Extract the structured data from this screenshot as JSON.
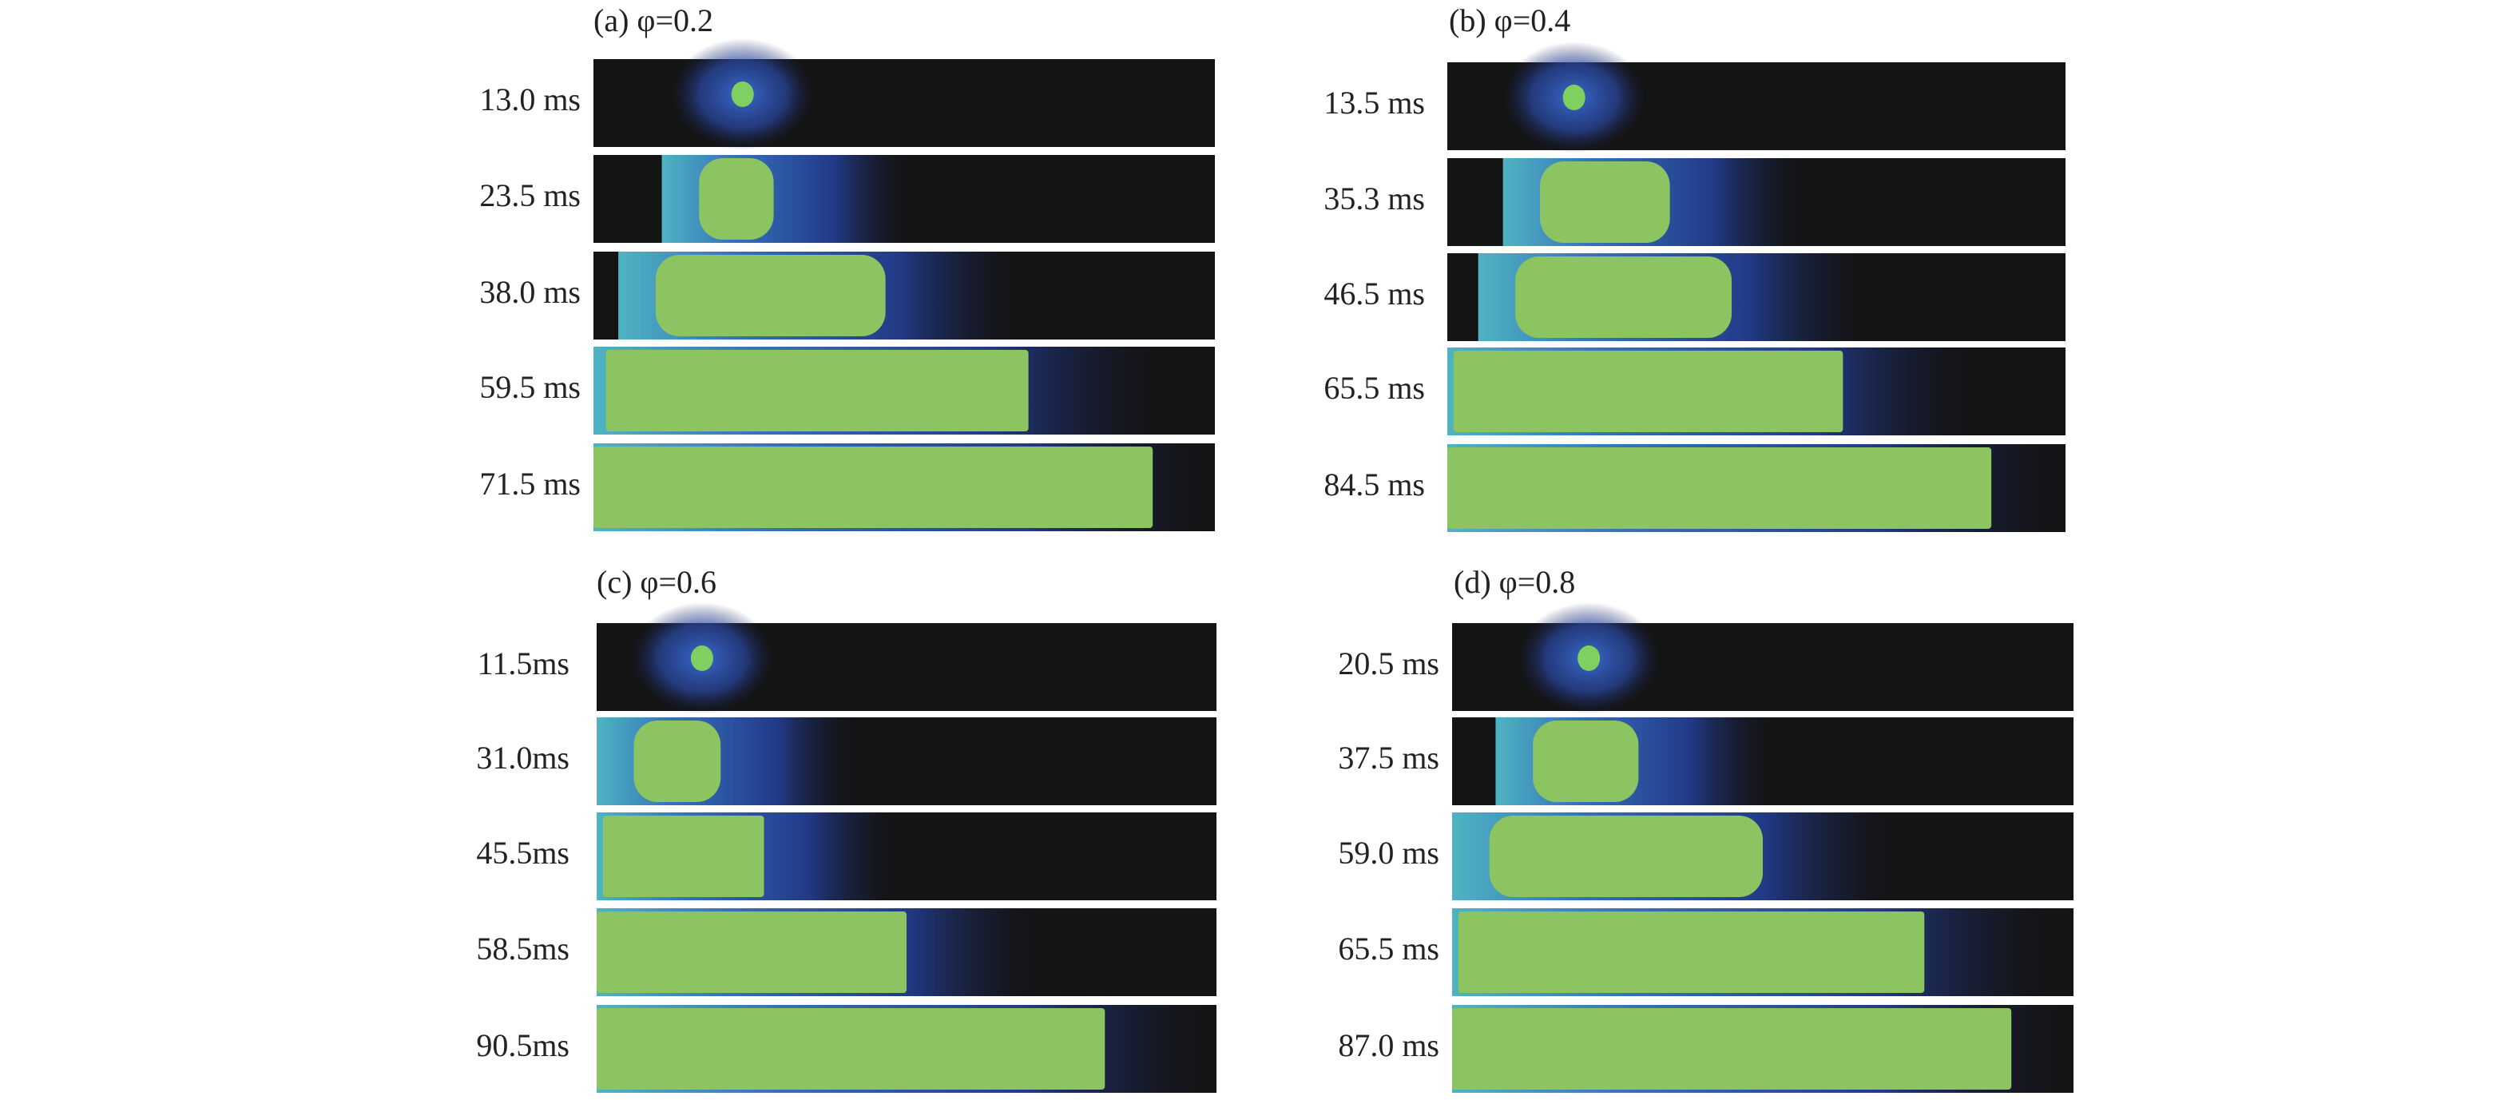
{
  "panels": [
    {
      "title": "(a) φ=0.2",
      "times": [
        "13.0 ms",
        "23.5 ms",
        "38.0 ms",
        "59.5 ms",
        "71.5 ms"
      ]
    },
    {
      "title": "(b) φ=0.4",
      "times": [
        "13.5 ms",
        "35.3 ms",
        "46.5 ms",
        "65.5 ms",
        "84.5 ms"
      ]
    },
    {
      "title": "(c) φ=0.6",
      "times": [
        "11.5ms",
        "31.0ms",
        "45.5ms",
        "58.5ms",
        "90.5ms"
      ]
    },
    {
      "title": "(d) φ=0.8",
      "times": [
        "20.5 ms",
        "37.5 ms",
        "59.0 ms",
        "65.5 ms",
        "87.0 ms"
      ]
    }
  ]
}
